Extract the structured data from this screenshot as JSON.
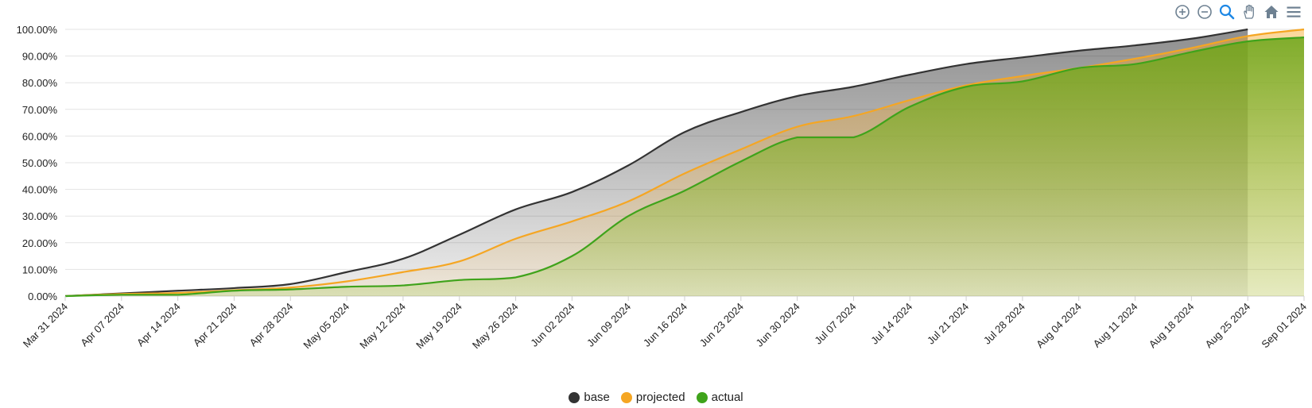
{
  "toolbar": {
    "icons": [
      "zoom-in-icon",
      "zoom-out-icon",
      "selection-zoom-icon",
      "pan-icon",
      "home-icon",
      "menu-icon"
    ],
    "active_color": "#1e88e5",
    "icon_color": "#6e8192"
  },
  "chart_data": {
    "type": "area",
    "x": [
      "Mar 31 2024",
      "Apr 07 2024",
      "Apr 14 2024",
      "Apr 21 2024",
      "Apr 28 2024",
      "May 05 2024",
      "May 12 2024",
      "May 19 2024",
      "May 26 2024",
      "Jun 02 2024",
      "Jun 09 2024",
      "Jun 16 2024",
      "Jun 23 2024",
      "Jun 30 2024",
      "Jul 07 2024",
      "Jul 14 2024",
      "Jul 21 2024",
      "Jul 28 2024",
      "Aug 04 2024",
      "Aug 11 2024",
      "Aug 18 2024",
      "Aug 25 2024",
      "Sep 01 2024"
    ],
    "y_ticks": [
      "0.00%",
      "10.00%",
      "20.00%",
      "30.00%",
      "40.00%",
      "50.00%",
      "60.00%",
      "70.00%",
      "80.00%",
      "90.00%",
      "100.00%"
    ],
    "ylim": [
      0,
      100
    ],
    "grid": true,
    "legend": "bottom-center",
    "series": [
      {
        "name": "base",
        "color": "#333333",
        "values": [
          0,
          1,
          2,
          3,
          4.5,
          9,
          14,
          23,
          32.5,
          39,
          49,
          61.5,
          69,
          75,
          78.5,
          83,
          87,
          89.5,
          92,
          94,
          96.5,
          100,
          null
        ]
      },
      {
        "name": "projected",
        "color": "#f5a623",
        "values": [
          0,
          0.8,
          1.2,
          2.2,
          3.2,
          5.5,
          9,
          13,
          21.5,
          28,
          35.5,
          46,
          55,
          63.5,
          67.5,
          73.5,
          79,
          82.5,
          85.5,
          89,
          93,
          97.5,
          100
        ]
      },
      {
        "name": "actual",
        "color": "#3fa31b",
        "values": [
          0,
          0.5,
          0.5,
          2,
          2.5,
          3.5,
          4,
          6,
          7,
          15,
          30,
          39.5,
          50.5,
          59.5,
          59.5,
          71,
          78.5,
          80.5,
          85.5,
          87,
          91.5,
          95.5,
          97
        ]
      }
    ]
  }
}
